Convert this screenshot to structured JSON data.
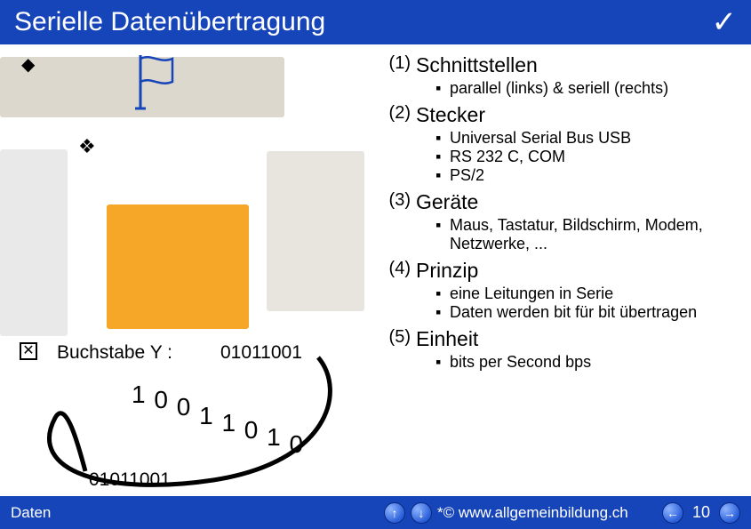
{
  "header": {
    "title": "Serielle Datenübertragung",
    "check_glyph": "✓"
  },
  "left": {
    "diamond": "◆",
    "clover": "❖",
    "box_x": "✕",
    "buchstabe_label": "Buchstabe Y :",
    "binary_top": "01011001",
    "wave": [
      "1",
      "0",
      "0",
      "1",
      "1",
      "0",
      "1",
      "0"
    ],
    "binary_bottom": "01011001"
  },
  "right": {
    "items": [
      {
        "num": "(1)",
        "head": "Schnittstellen",
        "subs": [
          "parallel (links) & seriell (rechts)"
        ]
      },
      {
        "num": "(2)",
        "head": "Stecker",
        "subs": [
          "Universal Serial Bus USB",
          "RS 232 C, COM",
          "PS/2"
        ]
      },
      {
        "num": "(3)",
        "head": "Geräte",
        "subs": [
          "Maus, Tastatur, Bildschirm, Modem, Netzwerke, ..."
        ]
      },
      {
        "num": "(4)",
        "head": "Prinzip",
        "subs": [
          "eine Leitungen in Serie",
          "Daten werden bit für bit übertragen"
        ]
      },
      {
        "num": "(5)",
        "head": "Einheit",
        "subs": [
          "bits per Second bps"
        ]
      }
    ],
    "sub_bullet": "▪"
  },
  "footer": {
    "left": "Daten",
    "credit": "*© www.allgemeinbildung.ch",
    "page": "10",
    "arrows": {
      "up": "↑",
      "down": "↓",
      "left": "←",
      "right": "→"
    }
  },
  "colors": {
    "brand": "#1644b9",
    "text": "#000000",
    "flag_stroke": "#1644b9"
  }
}
